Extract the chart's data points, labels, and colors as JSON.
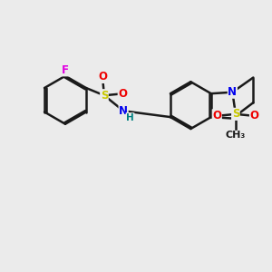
{
  "bg_color": "#ebebeb",
  "bond_color": "#1a1a1a",
  "bond_width": 1.8,
  "dbo": 0.055,
  "atom_colors": {
    "F": "#e000e0",
    "S": "#c8c800",
    "O": "#ee0000",
    "N": "#0000ee",
    "H": "#008080",
    "C": "#1a1a1a"
  },
  "fs": 8.5
}
